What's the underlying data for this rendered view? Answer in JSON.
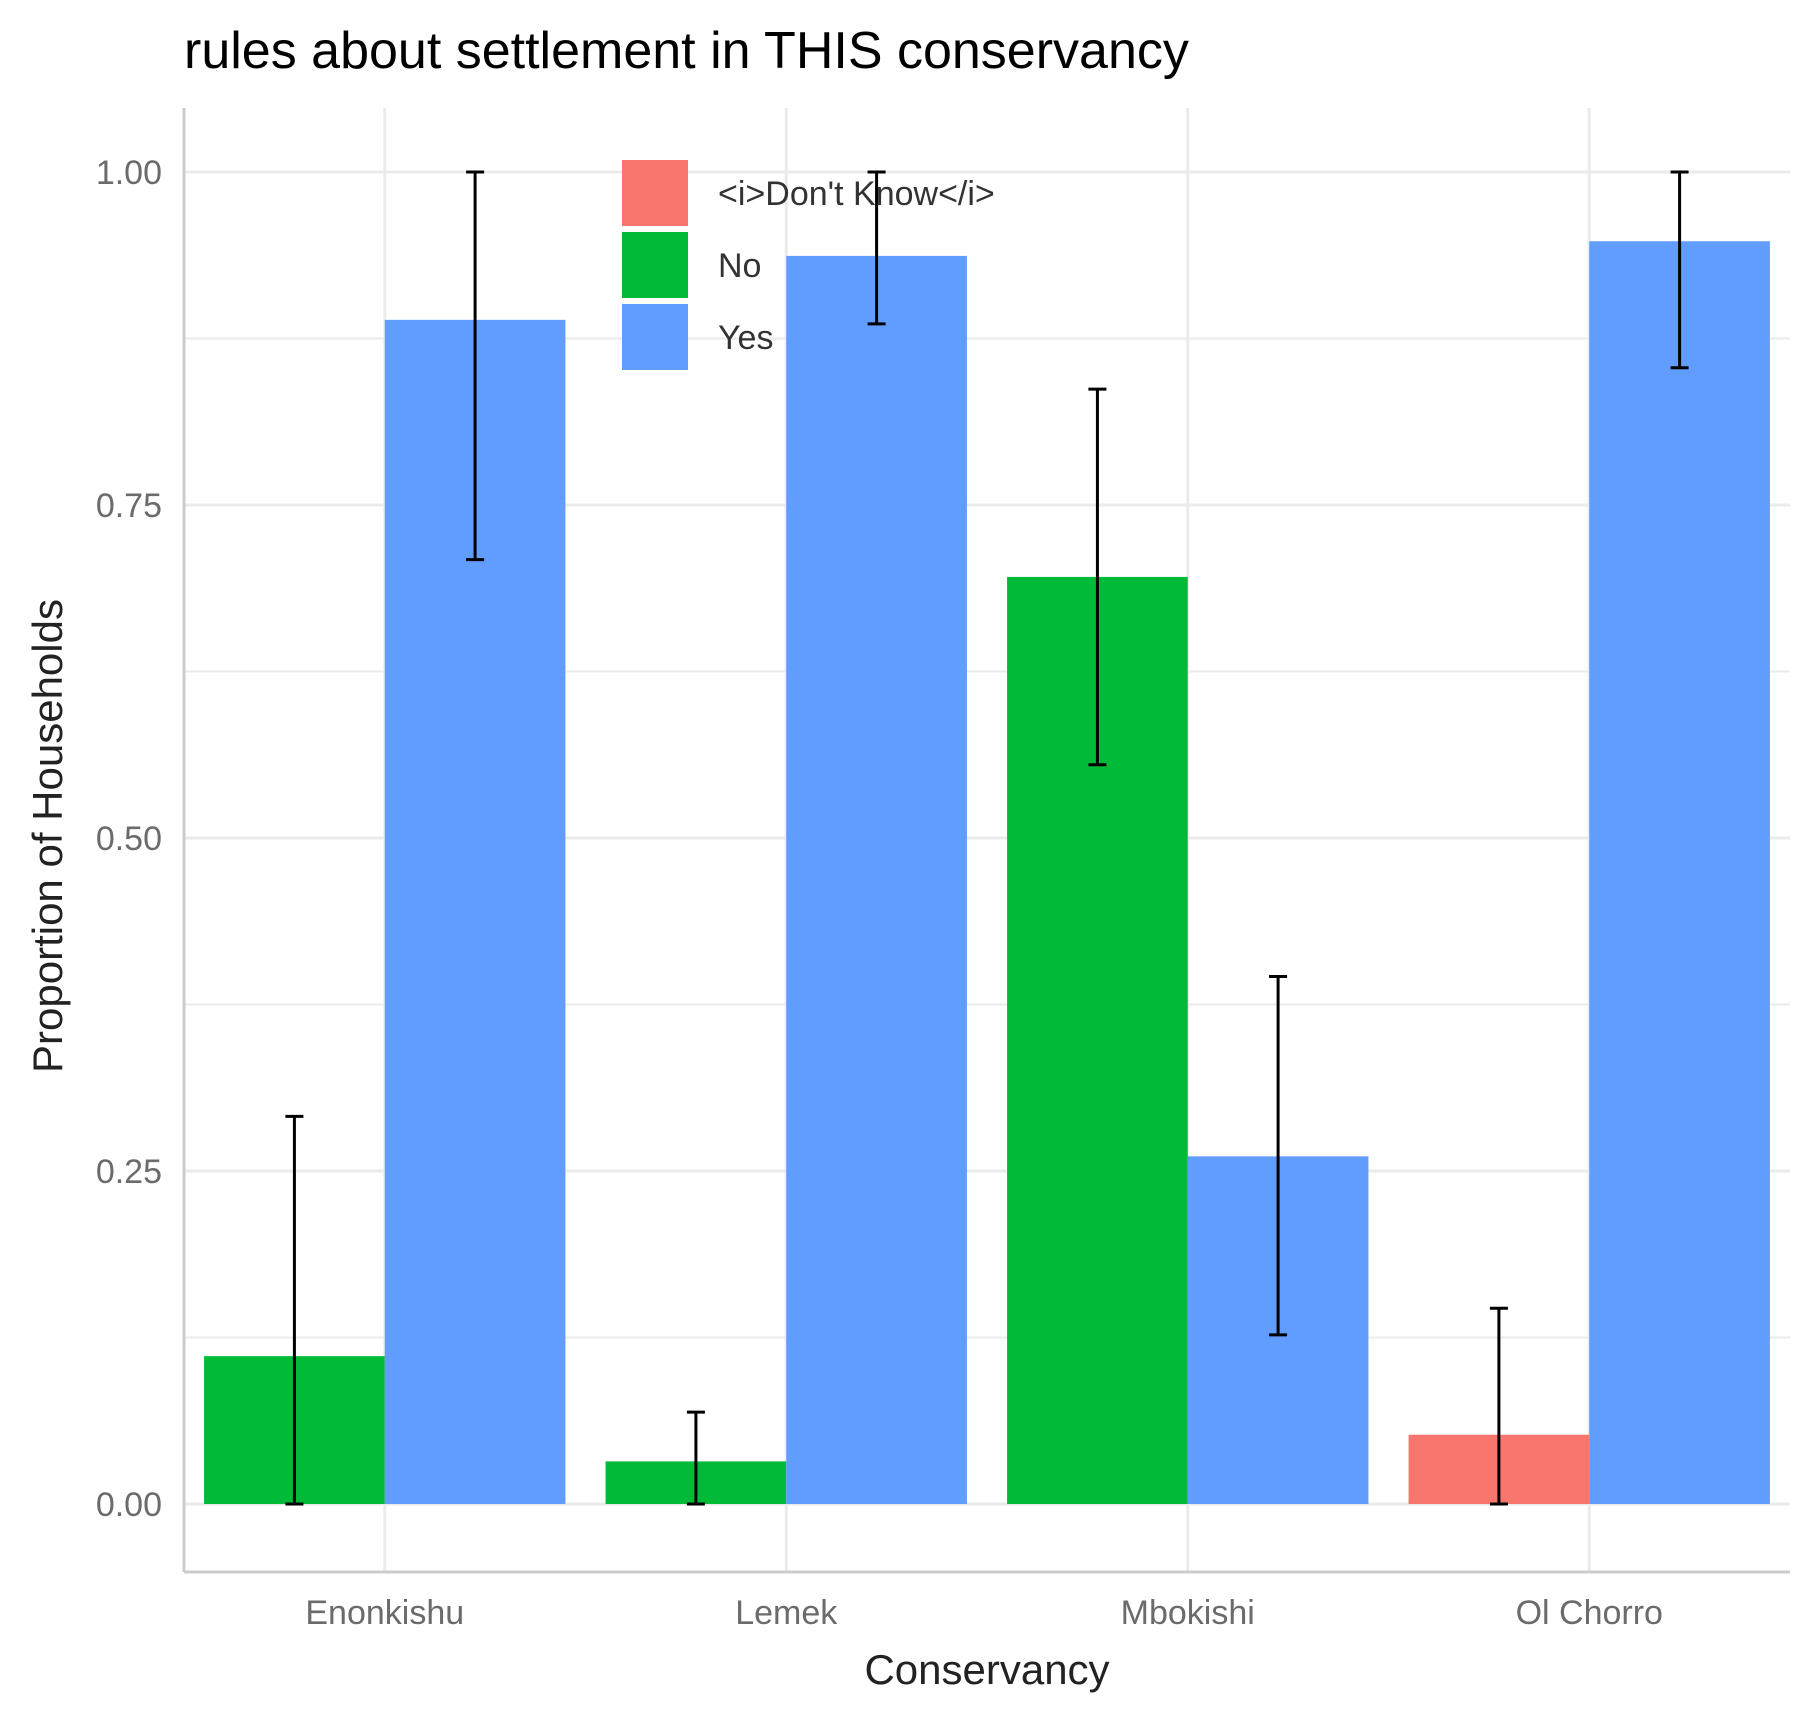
{
  "chart_data": {
    "type": "bar",
    "title": "rules about settlement in THIS conservancy",
    "xlabel": "Conservancy",
    "ylabel": "Proportion of Households",
    "ylim": [
      -0.05,
      1.05
    ],
    "yticks": [
      0.0,
      0.25,
      0.5,
      0.75,
      1.0
    ],
    "ytick_labels": [
      "0.00",
      "0.25",
      "0.50",
      "0.75",
      "1.00"
    ],
    "grid": true,
    "legend_position": "top-center",
    "categories": [
      "Enonkishu",
      "Lemek",
      "Mbokishi",
      "Ol Chorro"
    ],
    "series": [
      {
        "name": "<i>Don't Know</i>",
        "color": "#F8766D",
        "values": [
          null,
          null,
          null,
          0.052
        ],
        "error_low": [
          null,
          null,
          null,
          0.0
        ],
        "error_high": [
          null,
          null,
          null,
          0.147
        ]
      },
      {
        "name": "No",
        "color": "#00BA38",
        "values": [
          0.111,
          0.032,
          0.696,
          null
        ],
        "error_low": [
          0.0,
          0.0,
          0.555,
          null
        ],
        "error_high": [
          0.291,
          0.069,
          0.837,
          null
        ]
      },
      {
        "name": "Yes",
        "color": "#619CFF",
        "values": [
          0.889,
          0.937,
          0.261,
          0.948
        ],
        "error_low": [
          0.709,
          0.886,
          0.127,
          0.853
        ],
        "error_high": [
          1.0,
          1.0,
          0.396,
          1.0
        ]
      }
    ]
  }
}
